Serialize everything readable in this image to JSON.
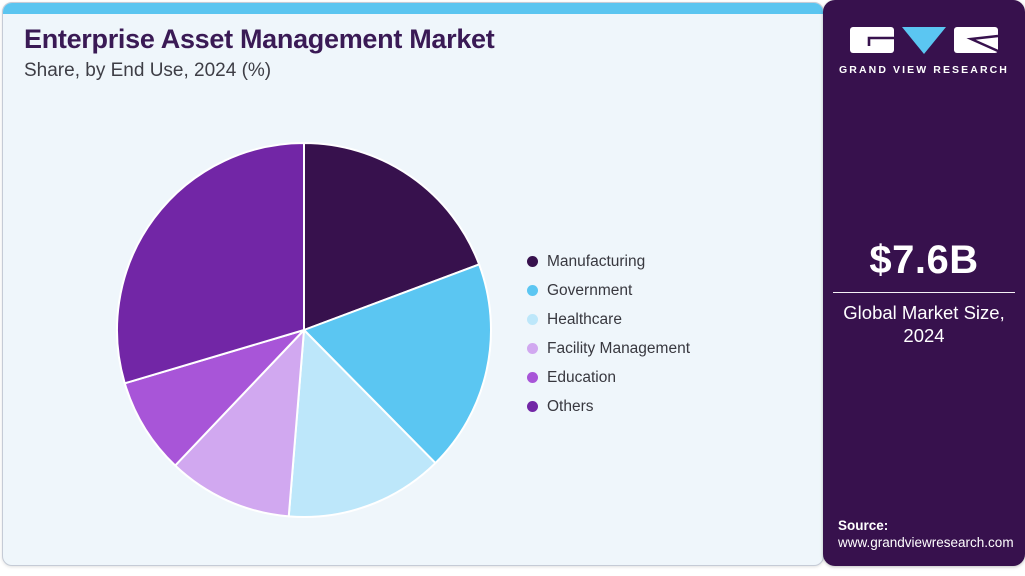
{
  "header": {
    "title": "Enterprise Asset Management Market",
    "subtitle": "Share, by End Use, 2024 (%)"
  },
  "chart_data": {
    "type": "pie",
    "title": "Enterprise Asset Management Market Share, by End Use, 2024 (%)",
    "unit": "%",
    "start_angle_deg": 0,
    "direction": "clockwise",
    "legend_position": "right",
    "categories": [
      "Manufacturing",
      "Government",
      "Healthcare",
      "Facility Management",
      "Education",
      "Others"
    ],
    "values": [
      19.3,
      18.3,
      13.7,
      10.8,
      8.3,
      29.6
    ],
    "colors": [
      "#37114D",
      "#5BC6F2",
      "#BDE7FA",
      "#D1A8F0",
      "#A855D8",
      "#7226A6"
    ]
  },
  "sidebar": {
    "logo_text": "GRAND VIEW RESEARCH",
    "market_size_value": "$7.6B",
    "market_size_label": "Global Market Size, 2024",
    "source_label": "Source:",
    "source_url": "www.grandviewresearch.com"
  },
  "colors": {
    "card_background": "#EFF6FB",
    "top_accent": "#5BC5F0",
    "sidebar_background": "#37114D",
    "title_text": "#3A1A55",
    "logo_triangle": "#5BC6F2"
  }
}
